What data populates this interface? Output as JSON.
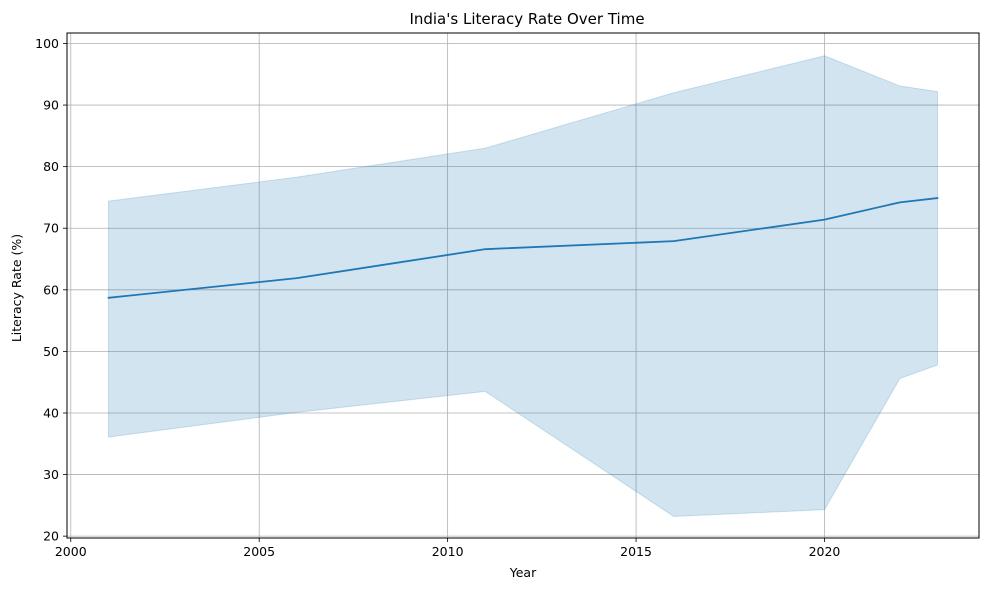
{
  "chart_data": {
    "type": "line",
    "title": "India's Literacy Rate Over Time",
    "xlabel": "Year",
    "ylabel": "Literacy Rate (%)",
    "xlim": [
      1999.9,
      2024.1
    ],
    "ylim": [
      19.7,
      101.7
    ],
    "xticks": [
      2000,
      2005,
      2010,
      2015,
      2020
    ],
    "yticks": [
      20,
      30,
      40,
      50,
      60,
      70,
      80,
      90,
      100
    ],
    "grid": true,
    "colors": {
      "line": "#1f77b4",
      "band": "#1f77b4",
      "grid": "#b0b0b0"
    },
    "series": [
      {
        "x": [
          2001,
          2006,
          2011,
          2016,
          2020,
          2022,
          2023
        ],
        "values": [
          58.7,
          61.9,
          66.6,
          67.9,
          71.4,
          74.2,
          74.9
        ],
        "upper": [
          74.4,
          78.3,
          83.0,
          92.0,
          98.0,
          93.1,
          92.2
        ],
        "lower": [
          36.1,
          40.1,
          43.5,
          23.2,
          24.3,
          45.6,
          47.8
        ]
      }
    ]
  }
}
